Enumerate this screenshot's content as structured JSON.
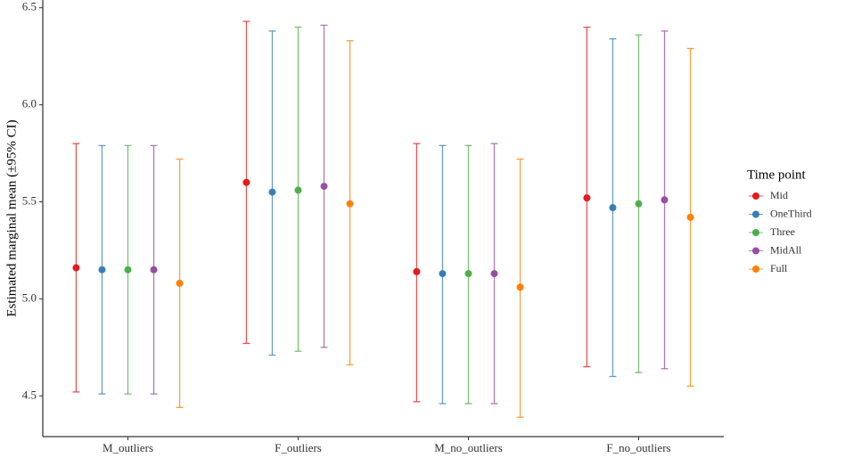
{
  "chart_data": {
    "type": "errorbar",
    "ylabel": "Estimated marginal mean (±95% CI)",
    "legend_title": "Time point",
    "categories": [
      "M_outliers",
      "F_outliers",
      "M_no_outliers",
      "F_no_outliers"
    ],
    "ylim": [
      4.29,
      6.54
    ],
    "yticks": [
      {
        "value": 4.5,
        "label": "4.5"
      },
      {
        "value": 5.0,
        "label": "5.0"
      },
      {
        "value": 5.5,
        "label": "5.5"
      },
      {
        "value": 6.0,
        "label": "6.0"
      },
      {
        "value": 6.5,
        "label": "6.5"
      }
    ],
    "legend": "right",
    "series": [
      {
        "name": "Mid",
        "color": "#e41a1c",
        "values": [
          5.16,
          5.6,
          5.14,
          5.52
        ],
        "lower": [
          4.52,
          4.77,
          4.47,
          4.65
        ],
        "upper": [
          5.8,
          6.43,
          5.8,
          6.4
        ]
      },
      {
        "name": "OneThird",
        "color": "#377eb8",
        "values": [
          5.15,
          5.55,
          5.13,
          5.47
        ],
        "lower": [
          4.51,
          4.71,
          4.46,
          4.6
        ],
        "upper": [
          5.79,
          6.38,
          5.79,
          6.34
        ]
      },
      {
        "name": "Three",
        "color": "#4daf4a",
        "values": [
          5.15,
          5.56,
          5.13,
          5.49
        ],
        "lower": [
          4.51,
          4.73,
          4.46,
          4.62
        ],
        "upper": [
          5.79,
          6.4,
          5.79,
          6.36
        ]
      },
      {
        "name": "MidAll",
        "color": "#984ea3",
        "values": [
          5.15,
          5.58,
          5.13,
          5.51
        ],
        "lower": [
          4.51,
          4.75,
          4.46,
          4.64
        ],
        "upper": [
          5.79,
          6.41,
          5.8,
          6.38
        ]
      },
      {
        "name": "Full",
        "color": "#ff7f00",
        "values": [
          5.08,
          5.49,
          5.06,
          5.42
        ],
        "lower": [
          4.44,
          4.66,
          4.39,
          4.55
        ],
        "upper": [
          5.72,
          6.33,
          5.72,
          6.29
        ]
      }
    ]
  }
}
